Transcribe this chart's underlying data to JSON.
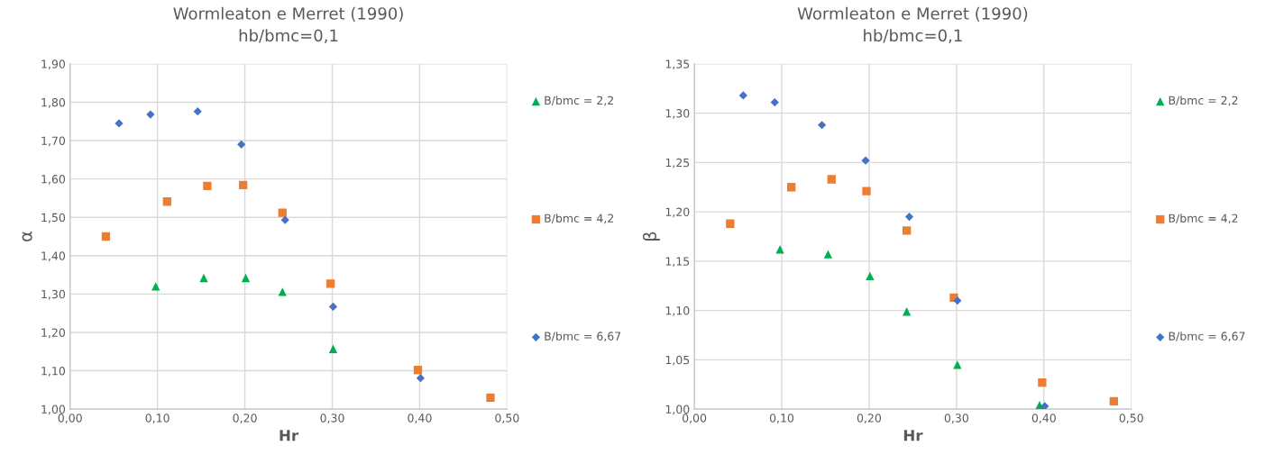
{
  "chart_data": [
    {
      "type": "scatter",
      "title": "Wormleaton e Merret (1990)",
      "subtitle": "hb/bmc=0,1",
      "xlabel": "Hr",
      "ylabel": "α",
      "xlim": [
        0,
        0.5
      ],
      "xticks": [
        {
          "value": 0,
          "label": "0,00"
        },
        {
          "value": 0.1,
          "label": "0,10"
        },
        {
          "value": 0.2,
          "label": "0,20"
        },
        {
          "value": 0.3,
          "label": "0,30"
        },
        {
          "value": 0.4,
          "label": "0,40"
        },
        {
          "value": 0.5,
          "label": "0,50"
        }
      ],
      "ylim": [
        1.0,
        1.9
      ],
      "yticks": [
        {
          "value": 1.0,
          "label": "1,00"
        },
        {
          "value": 1.1,
          "label": "1,10"
        },
        {
          "value": 1.2,
          "label": "1,20"
        },
        {
          "value": 1.3,
          "label": "1,30"
        },
        {
          "value": 1.4,
          "label": "1,40"
        },
        {
          "value": 1.5,
          "label": "1,50"
        },
        {
          "value": 1.6,
          "label": "1,60"
        },
        {
          "value": 1.7,
          "label": "1,70"
        },
        {
          "value": 1.8,
          "label": "1,80"
        },
        {
          "value": 1.9,
          "label": "1,90"
        }
      ],
      "grid": true,
      "legend": "right",
      "series": [
        {
          "name": "B/bmc = 2,2",
          "color": "#00b050",
          "marker": "triangle",
          "x": [
            0.098,
            0.153,
            0.201,
            0.243,
            0.301
          ],
          "values": [
            1.32,
            1.342,
            1.342,
            1.306,
            1.157
          ]
        },
        {
          "name": "B/bmc = 4,2",
          "color": "#ed7d31",
          "marker": "square",
          "x": [
            0.041,
            0.111,
            0.157,
            0.198,
            0.243,
            0.298,
            0.398,
            0.481
          ],
          "values": [
            1.45,
            1.541,
            1.582,
            1.584,
            1.512,
            1.327,
            1.102,
            1.03
          ]
        },
        {
          "name": "B/bmc = 6,67",
          "color": "#4472c4",
          "marker": "diamond",
          "x": [
            0.056,
            0.092,
            0.146,
            0.196,
            0.246,
            0.301,
            0.401
          ],
          "values": [
            1.745,
            1.768,
            1.776,
            1.69,
            1.493,
            1.267,
            1.081
          ]
        }
      ]
    },
    {
      "type": "scatter",
      "title": "Wormleaton e Merret (1990)",
      "subtitle": "hb/bmc=0,1",
      "xlabel": "Hr",
      "ylabel": "β",
      "xlim": [
        0,
        0.5
      ],
      "xticks": [
        {
          "value": 0,
          "label": "0,00"
        },
        {
          "value": 0.1,
          "label": "0,10"
        },
        {
          "value": 0.2,
          "label": "0,20"
        },
        {
          "value": 0.3,
          "label": "0,30"
        },
        {
          "value": 0.4,
          "label": "0,40"
        },
        {
          "value": 0.5,
          "label": "0,50"
        }
      ],
      "ylim": [
        1.0,
        1.35
      ],
      "yticks": [
        {
          "value": 1.0,
          "label": "1,00"
        },
        {
          "value": 1.05,
          "label": "1,05"
        },
        {
          "value": 1.1,
          "label": "1,10"
        },
        {
          "value": 1.15,
          "label": "1,15"
        },
        {
          "value": 1.2,
          "label": "1,20"
        },
        {
          "value": 1.25,
          "label": "1,25"
        },
        {
          "value": 1.3,
          "label": "1,30"
        },
        {
          "value": 1.35,
          "label": "1,35"
        }
      ],
      "grid": true,
      "legend": "right",
      "series": [
        {
          "name": "B/bmc = 2,2",
          "color": "#00b050",
          "marker": "triangle",
          "x": [
            0.098,
            0.153,
            0.201,
            0.243,
            0.301,
            0.395
          ],
          "values": [
            1.162,
            1.157,
            1.135,
            1.099,
            1.045,
            1.004
          ]
        },
        {
          "name": "B/bmc = 4,2",
          "color": "#ed7d31",
          "marker": "square",
          "x": [
            0.041,
            0.111,
            0.157,
            0.197,
            0.243,
            0.297,
            0.398,
            0.48
          ],
          "values": [
            1.188,
            1.225,
            1.233,
            1.221,
            1.181,
            1.113,
            1.027,
            1.008
          ]
        },
        {
          "name": "B/bmc = 6,67",
          "color": "#4472c4",
          "marker": "diamond",
          "x": [
            0.056,
            0.092,
            0.146,
            0.196,
            0.246,
            0.301,
            0.401
          ],
          "values": [
            1.318,
            1.311,
            1.288,
            1.252,
            1.195,
            1.11,
            1.003
          ]
        }
      ]
    }
  ]
}
